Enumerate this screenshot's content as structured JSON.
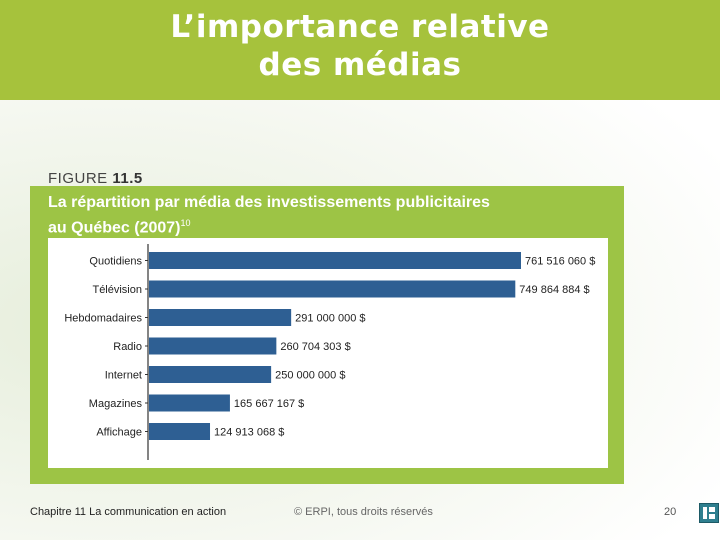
{
  "slide": {
    "title_line1": "L’importance relative",
    "title_line2": "des médias"
  },
  "figure": {
    "label_prefix": "FIGURE",
    "label_number": "11.5",
    "heading_line1": "La répartition par média des investissements publicitaires",
    "heading_line2": "au Québec (2007)",
    "heading_note": "10"
  },
  "chart_data": {
    "type": "bar",
    "orientation": "horizontal",
    "categories": [
      "Quotidiens",
      "Télévision",
      "Hebdomadaires",
      "Radio",
      "Internet",
      "Magazines",
      "Affichage"
    ],
    "values": [
      761516060,
      749864884,
      291000000,
      260704303,
      250000000,
      165667167,
      124913068
    ],
    "value_labels": [
      "761 516 060 $",
      "749 864 884 $",
      "291 000 000 $",
      "260 704 303 $",
      "250 000 000 $",
      "165 667 167 $",
      "124 913 068 $"
    ],
    "bar_color": "#2e5f93",
    "xlim": [
      0,
      761516060
    ]
  },
  "footer": {
    "chapter": "Chapitre 11  La communication en action",
    "copyright": "© ERPI, tous droits réservés",
    "page": "20"
  },
  "colors": {
    "accent": "#a6c23c",
    "panel": "#9dc445"
  }
}
